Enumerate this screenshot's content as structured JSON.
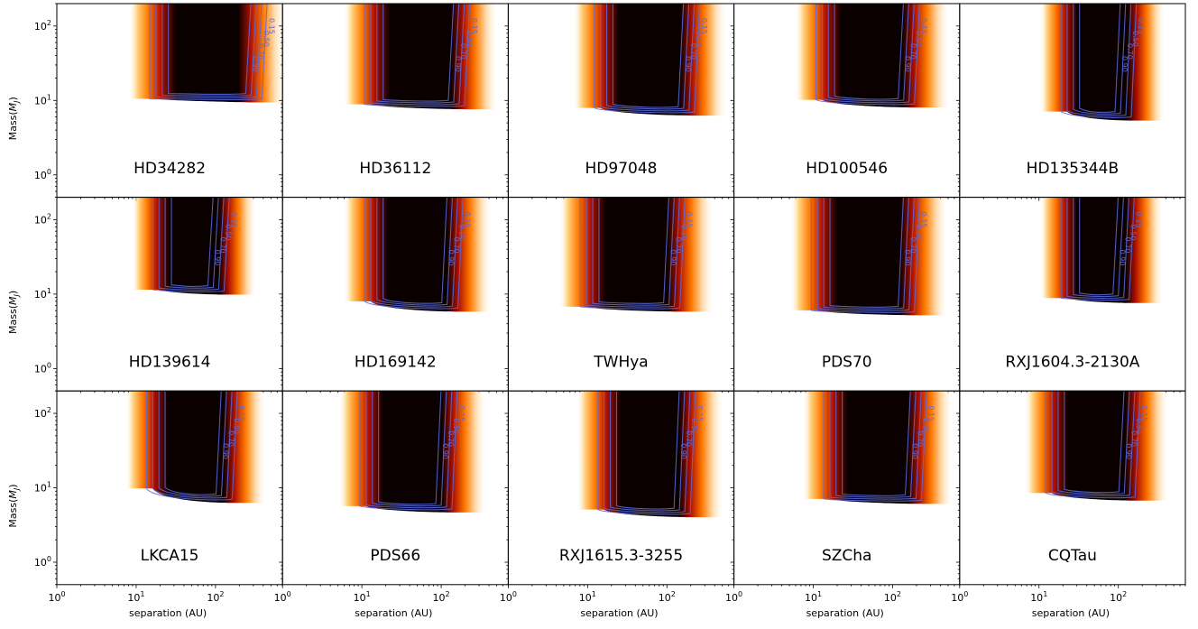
{
  "chart_data": {
    "type": "heatmap",
    "layout": "grid 3x5, shared axes",
    "xscale": "log",
    "yscale": "log",
    "xlim": [
      1,
      700
    ],
    "ylim": [
      0.5,
      200
    ],
    "xlabel": "separation (AU)",
    "ylabel": "Mass(M_J)",
    "ylabel_parts": {
      "main": "Mass(",
      "sym": "M",
      "sub": "J",
      "end": ")"
    },
    "xticks": [
      {
        "value": 1,
        "base": "10",
        "exp": "0"
      },
      {
        "value": 10,
        "base": "10",
        "exp": "1"
      },
      {
        "value": 100,
        "base": "10",
        "exp": "2"
      }
    ],
    "yticks": [
      {
        "value": 1,
        "base": "10",
        "exp": "0"
      },
      {
        "value": 10,
        "base": "10",
        "exp": "1"
      },
      {
        "value": 100,
        "base": "10",
        "exp": "2"
      }
    ],
    "contour_levels": [
      "0.15",
      "0.50",
      "0.70",
      "0.90"
    ],
    "colormap": "gist_heat_r (white-orange-red-black)",
    "contour_color": "#5b6be0",
    "panels": [
      {
        "name": "HD34282",
        "x_start": 11,
        "x_end": 450,
        "x_fade": 750,
        "y_floor": 10.5,
        "dip": 0.0
      },
      {
        "name": "HD36112",
        "x_start": 8,
        "x_end": 230,
        "x_fade": 500,
        "y_floor": 8.5,
        "dip": 0.05
      },
      {
        "name": "HD97048",
        "x_start": 9,
        "x_end": 260,
        "x_fade": 550,
        "y_floor": 7.0,
        "dip": 0.15
      },
      {
        "name": "HD100546",
        "x_start": 8,
        "x_end": 220,
        "x_fade": 500,
        "y_floor": 9.0,
        "dip": 0.15
      },
      {
        "name": "HD135344B",
        "x_start": 14,
        "x_end": 170,
        "x_fade": 380,
        "y_floor": 6.0,
        "dip": 0.2
      },
      {
        "name": "HD139614",
        "x_start": 12,
        "x_end": 150,
        "x_fade": 320,
        "y_floor": 11.0,
        "dip": 0.05
      },
      {
        "name": "HD169142",
        "x_start": 8,
        "x_end": 190,
        "x_fade": 420,
        "y_floor": 6.5,
        "dip": 0.25
      },
      {
        "name": "TWHya",
        "x_start": 6,
        "x_end": 170,
        "x_fade": 380,
        "y_floor": 6.5,
        "dip": 0.05
      },
      {
        "name": "PDS70",
        "x_start": 7,
        "x_end": 220,
        "x_fade": 480,
        "y_floor": 5.8,
        "dip": 0.05
      },
      {
        "name": "RXJ1604.3-2130A",
        "x_start": 14,
        "x_end": 160,
        "x_fade": 360,
        "y_floor": 8.5,
        "dip": 0.05
      },
      {
        "name": "LKCA15",
        "x_start": 10,
        "x_end": 190,
        "x_fade": 420,
        "y_floor": 7.0,
        "dip": 0.4
      },
      {
        "name": "PDS66",
        "x_start": 7,
        "x_end": 160,
        "x_fade": 360,
        "y_floor": 5.2,
        "dip": 0.1
      },
      {
        "name": "RXJ1615.3-3255",
        "x_start": 10,
        "x_end": 230,
        "x_fade": 500,
        "y_floor": 4.5,
        "dip": 0.15
      },
      {
        "name": "SZCha",
        "x_start": 10,
        "x_end": 270,
        "x_fade": 560,
        "y_floor": 6.8,
        "dip": 0.05
      },
      {
        "name": "CQTau",
        "x_start": 9,
        "x_end": 190,
        "x_fade": 420,
        "y_floor": 7.5,
        "dip": 0.15
      }
    ]
  }
}
